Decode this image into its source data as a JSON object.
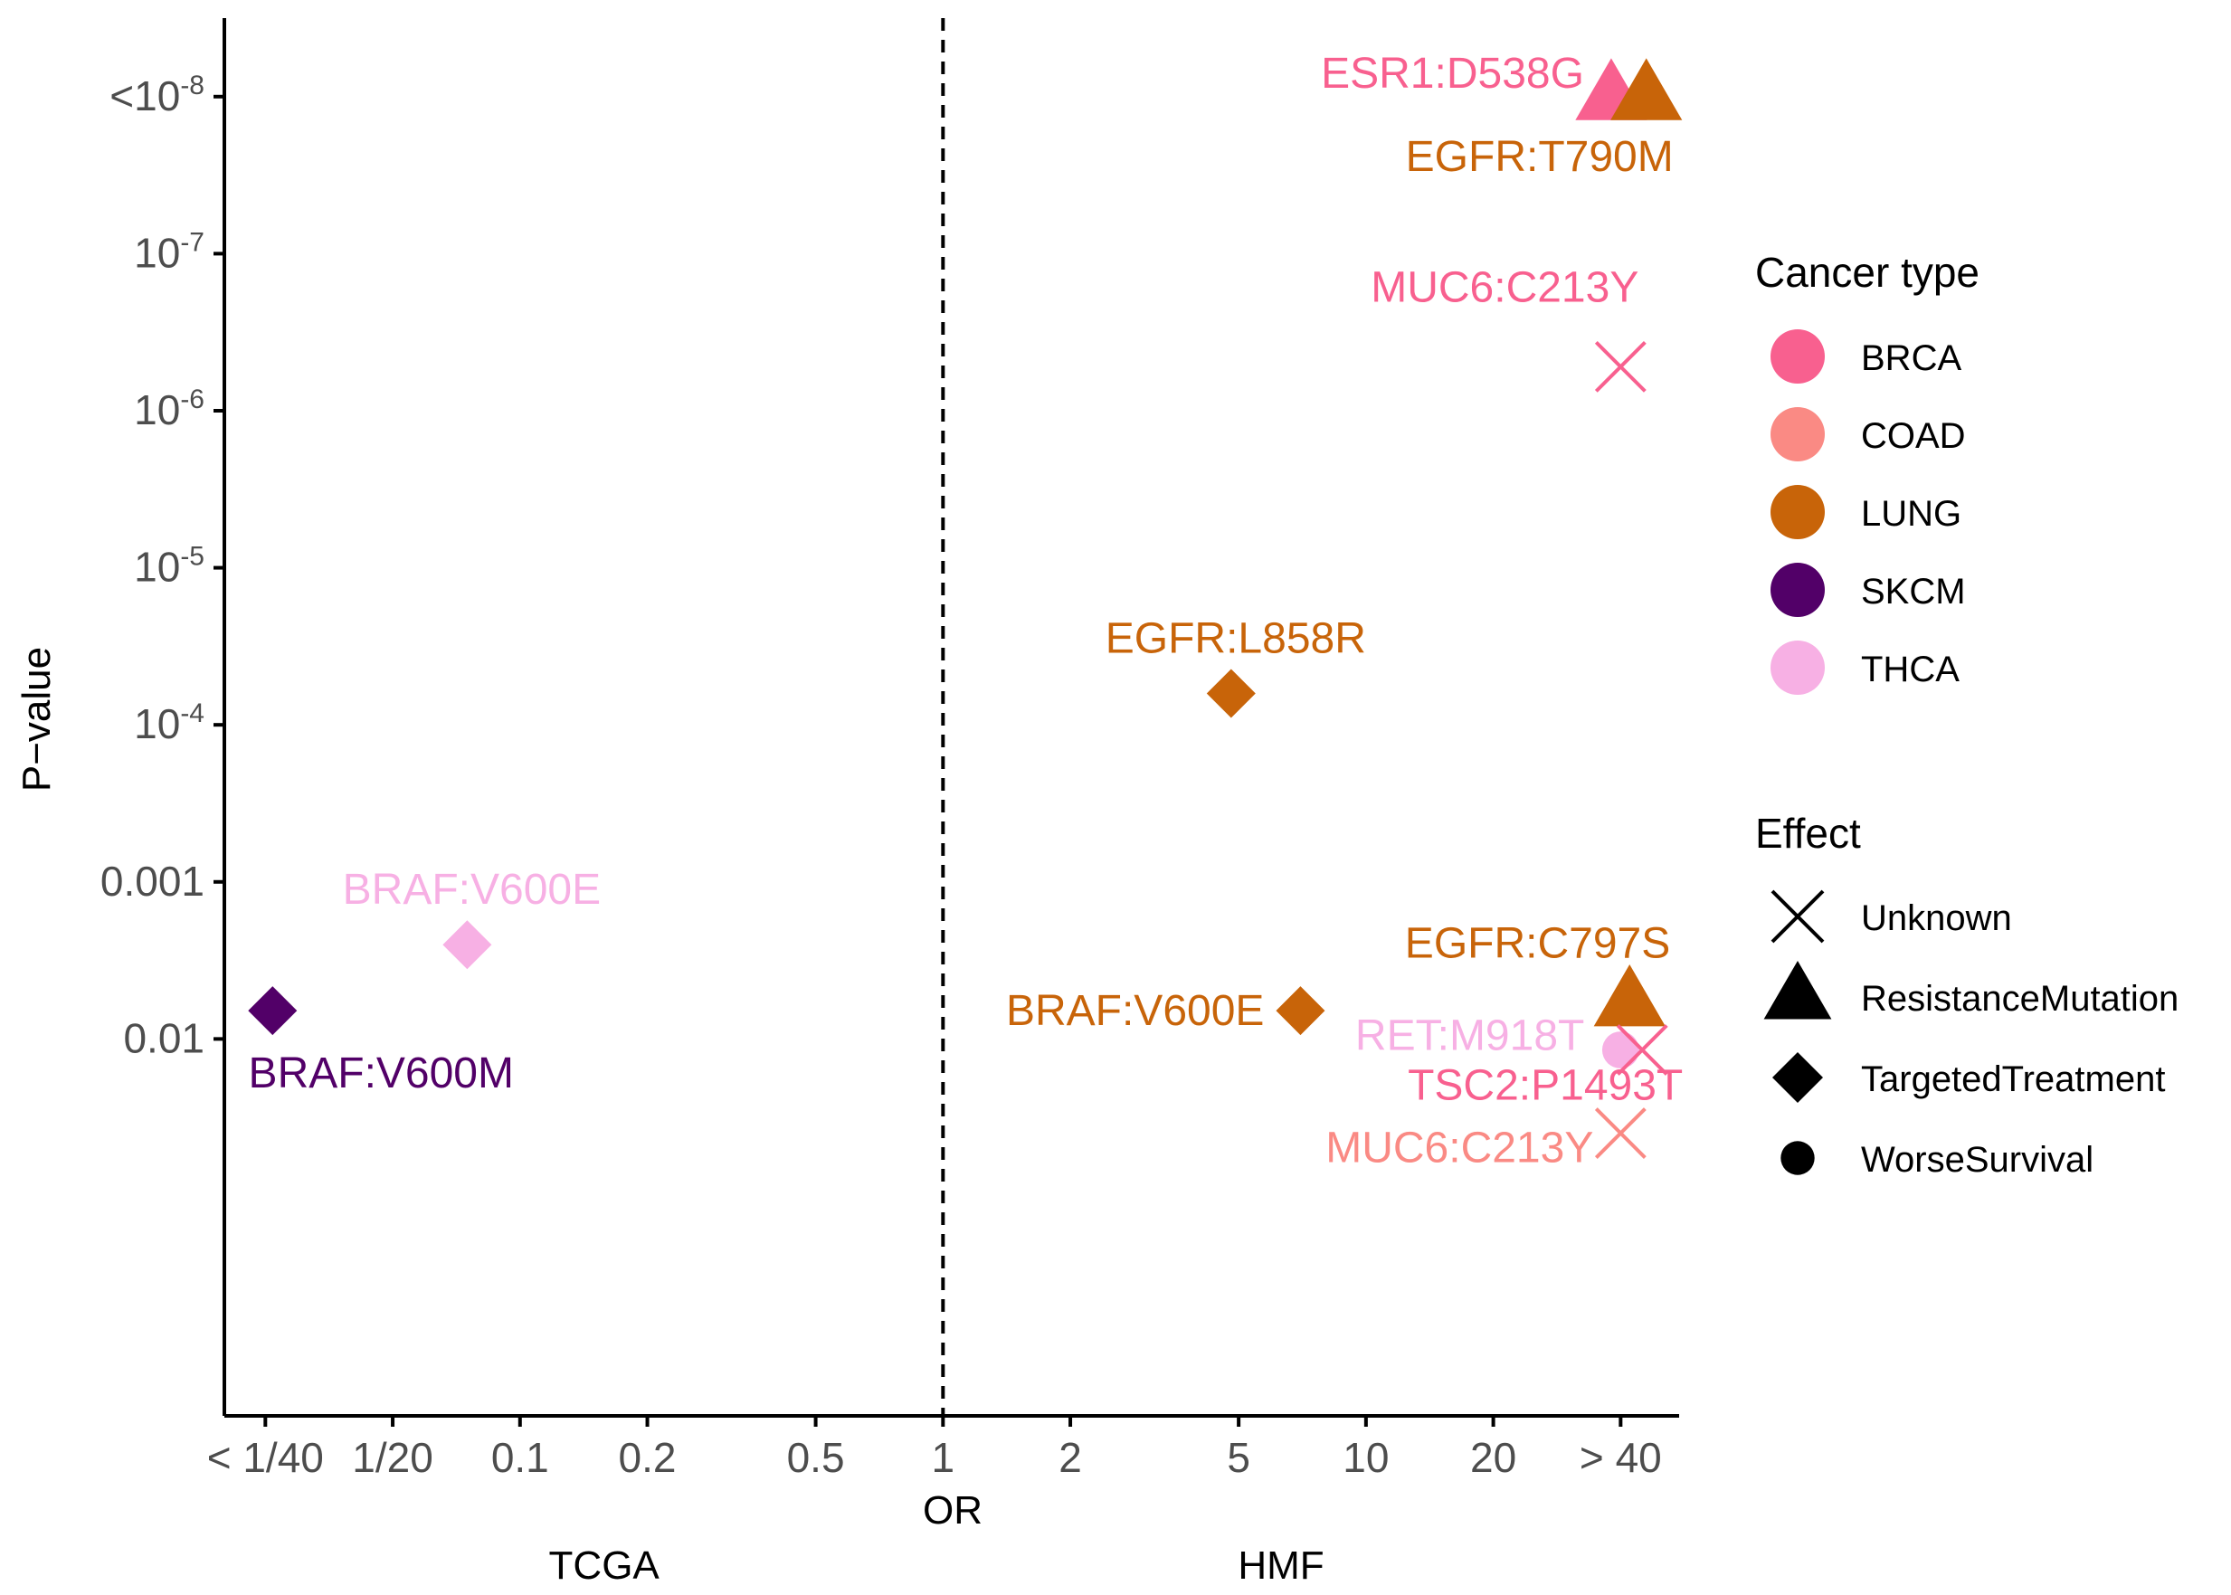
{
  "chart_data": {
    "type": "scatter",
    "x_scale": "log2",
    "y_scale": "log10",
    "xlabel": "OR",
    "ylabel": "P−value",
    "x_ticks": [
      {
        "value": 0.025,
        "label": "< 1/40"
      },
      {
        "value": 0.05,
        "label": "1/20"
      },
      {
        "value": 0.1,
        "label": "0.1"
      },
      {
        "value": 0.2,
        "label": "0.2"
      },
      {
        "value": 0.5,
        "label": "0.5"
      },
      {
        "value": 1,
        "label": "1"
      },
      {
        "value": 2,
        "label": "2"
      },
      {
        "value": 5,
        "label": "5"
      },
      {
        "value": 10,
        "label": "10"
      },
      {
        "value": 20,
        "label": "20"
      },
      {
        "value": 40,
        "label": "> 40"
      }
    ],
    "y_ticks": [
      {
        "value": 8,
        "label": "<10",
        "sup": "-8"
      },
      {
        "value": 7,
        "label": "10",
        "sup": "-7"
      },
      {
        "value": 6,
        "label": "10",
        "sup": "-6"
      },
      {
        "value": 5,
        "label": "10",
        "sup": "-5"
      },
      {
        "value": 4,
        "label": "10",
        "sup": "-4"
      },
      {
        "value": 3,
        "label": "0.001",
        "sup": ""
      },
      {
        "value": 2,
        "label": "0.01",
        "sup": ""
      }
    ],
    "xlim": [
      0.02,
      55
    ],
    "ylim_neglog10": [
      -0.4,
      8.5
    ],
    "reference_line": {
      "x": 1,
      "style": "dashed"
    },
    "group_labels": [
      {
        "text": "TCGA",
        "x": 0.158
      },
      {
        "text": "HMF",
        "x": 6.3
      }
    ],
    "points": [
      {
        "gene": "ESR1:D538G",
        "cancer": "BRCA",
        "effect": "ResistanceMutation",
        "or": 38,
        "neglog10p": 8.0
      },
      {
        "gene": "EGFR:T790M",
        "cancer": "LUNG",
        "effect": "ResistanceMutation",
        "or": 46,
        "neglog10p": 8.0
      },
      {
        "gene": "MUC6:C213Y",
        "cancer": "BRCA",
        "effect": "Unknown",
        "or": 40,
        "neglog10p": 6.28
      },
      {
        "gene": "EGFR:L858R",
        "cancer": "LUNG",
        "effect": "TargetedTreatment",
        "or": 4.8,
        "neglog10p": 4.2
      },
      {
        "gene": "BRAF:V600E",
        "cancer": "THCA",
        "effect": "TargetedTreatment",
        "or": 0.075,
        "neglog10p": 2.6
      },
      {
        "gene": "BRAF:V600M",
        "cancer": "SKCM",
        "effect": "TargetedTreatment",
        "or": 0.026,
        "neglog10p": 2.18
      },
      {
        "gene": "BRAF:V600E",
        "cancer": "LUNG",
        "effect": "TargetedTreatment",
        "or": 7,
        "neglog10p": 2.18
      },
      {
        "gene": "EGFR:C797S",
        "cancer": "LUNG",
        "effect": "ResistanceMutation",
        "or": 42,
        "neglog10p": 2.23
      },
      {
        "gene": "RET:M918T",
        "cancer": "THCA",
        "effect": "WorseSurvival",
        "or": 40,
        "neglog10p": 1.93
      },
      {
        "gene": "TSC2:P1493T",
        "cancer": "BRCA",
        "effect": "Unknown",
        "or": 45,
        "neglog10p": 1.93
      },
      {
        "gene": "MUC6:C213Y",
        "cancer": "COAD",
        "effect": "Unknown",
        "or": 40,
        "neglog10p": 1.4
      }
    ],
    "legend_cancer": {
      "title": "Cancer type",
      "items": [
        {
          "label": "BRCA",
          "color": "#F8608F"
        },
        {
          "label": "COAD",
          "color": "#FA8A84"
        },
        {
          "label": "LUNG",
          "color": "#C86409"
        },
        {
          "label": "SKCM",
          "color": "#520068"
        },
        {
          "label": "THCA",
          "color": "#F7B0E4"
        }
      ]
    },
    "legend_effect": {
      "title": "Effect",
      "items": [
        {
          "label": "Unknown",
          "shape": "cross"
        },
        {
          "label": "ResistanceMutation",
          "shape": "triangle"
        },
        {
          "label": "TargetedTreatment",
          "shape": "diamond"
        },
        {
          "label": "WorseSurvival",
          "shape": "circle"
        }
      ]
    }
  }
}
